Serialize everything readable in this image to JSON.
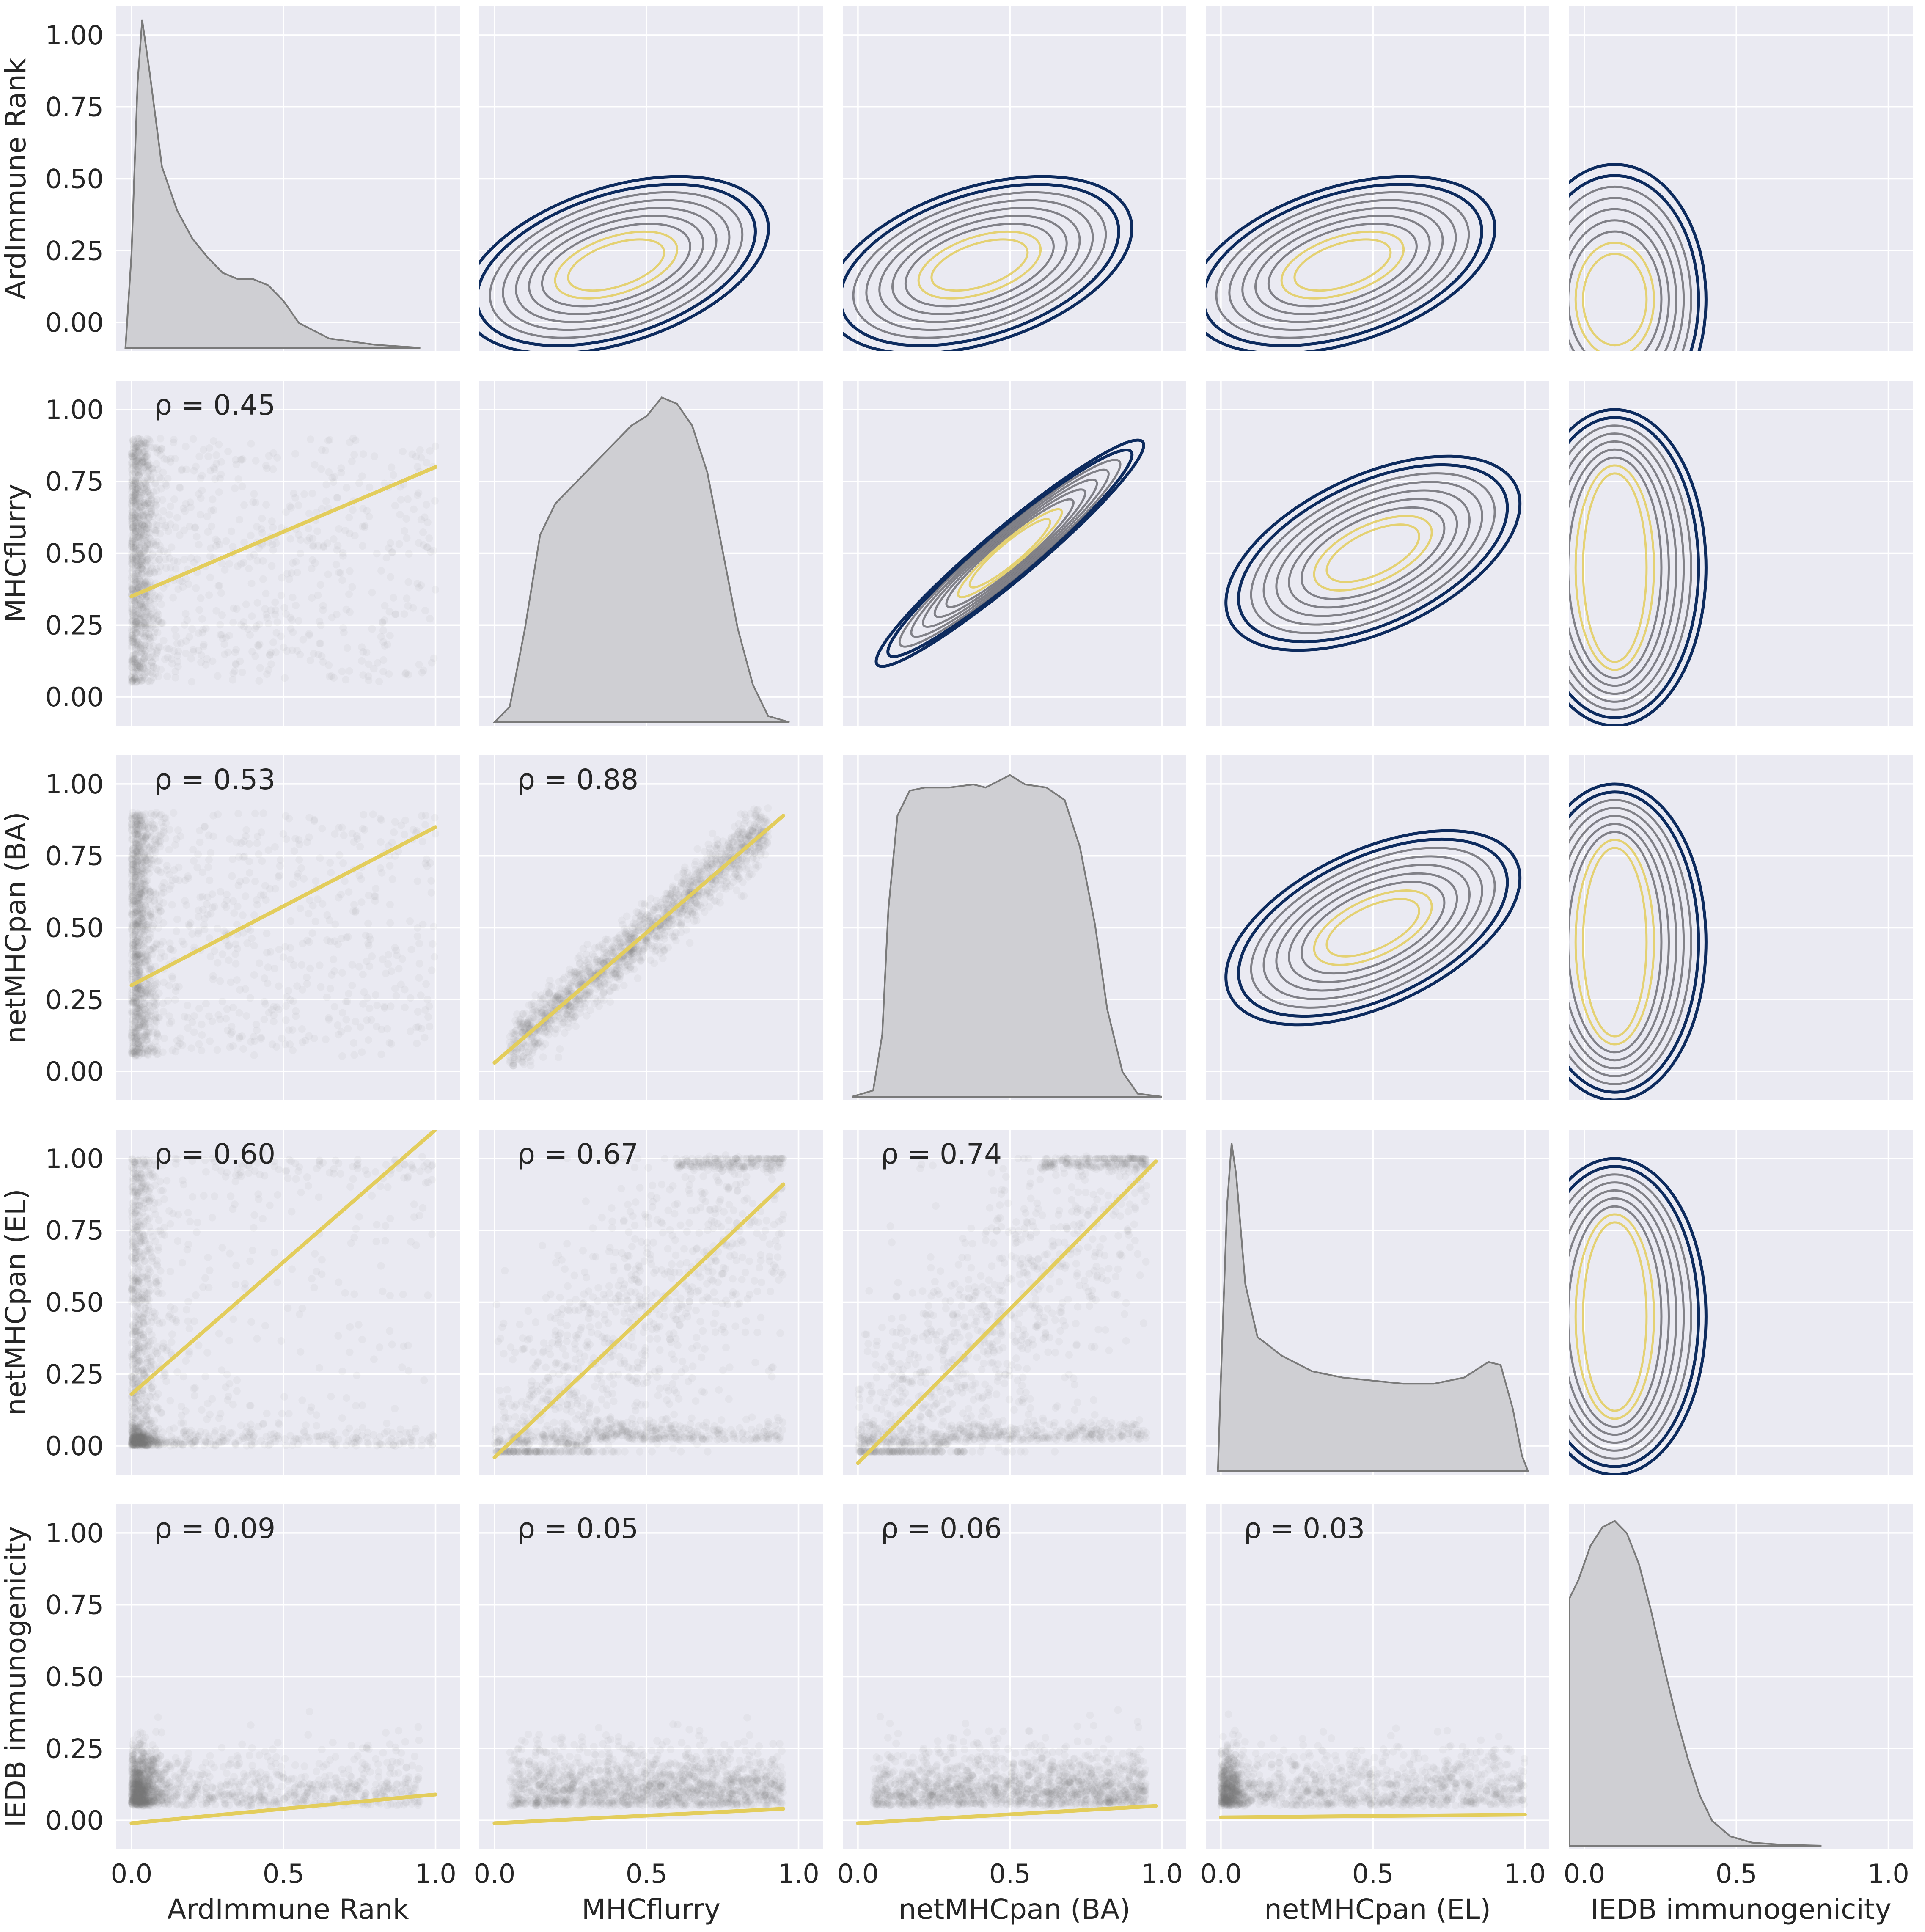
{
  "chart_data": {
    "type": "scatter",
    "layout": "pairplot 5x5; lower triangle scatter with linear fit, diagonal KDE, upper triangle bivariate KDE contours",
    "variables": [
      "ArdImmune Rank",
      "MHCflurry",
      "netMHCpan (BA)",
      "netMHCpan (EL)",
      "IEDB immunogenicity"
    ],
    "x_ticks": [
      "0.0",
      "0.5",
      "1.0"
    ],
    "y_ticks": [
      "0.00",
      "0.25",
      "0.50",
      "0.75",
      "1.00"
    ],
    "xlim": [
      -0.05,
      1.08
    ],
    "ylim": [
      -0.1,
      1.1
    ],
    "grid": true,
    "colors": {
      "panel_background": "#eaeaf2",
      "scatter": "#7a7a7a",
      "fit_line": "#e3cd5c",
      "kde_fill": "#cfcfd3",
      "contour_outer": "#0d2b5e",
      "contour_mid": "#6f6f75",
      "contour_inner": "#e3cd5c"
    },
    "correlations": [
      {
        "x": "ArdImmune Rank",
        "y": "MHCflurry",
        "label": "ρ = 0.45",
        "fit": [
          [
            0.0,
            0.35
          ],
          [
            1.0,
            0.8
          ]
        ]
      },
      {
        "x": "ArdImmune Rank",
        "y": "netMHCpan (BA)",
        "label": "ρ = 0.53",
        "fit": [
          [
            0.0,
            0.3
          ],
          [
            1.0,
            0.85
          ]
        ]
      },
      {
        "x": "MHCflurry",
        "y": "netMHCpan (BA)",
        "label": "ρ = 0.88",
        "fit": [
          [
            0.0,
            0.03
          ],
          [
            0.95,
            0.89
          ]
        ]
      },
      {
        "x": "ArdImmune Rank",
        "y": "netMHCpan (EL)",
        "label": "ρ = 0.60",
        "fit": [
          [
            0.0,
            0.18
          ],
          [
            1.0,
            1.1
          ]
        ]
      },
      {
        "x": "MHCflurry",
        "y": "netMHCpan (EL)",
        "label": "ρ = 0.67",
        "fit": [
          [
            0.0,
            -0.04
          ],
          [
            0.95,
            0.91
          ]
        ]
      },
      {
        "x": "netMHCpan (BA)",
        "y": "netMHCpan (EL)",
        "label": "ρ = 0.74",
        "fit": [
          [
            0.0,
            -0.06
          ],
          [
            0.98,
            0.99
          ]
        ]
      },
      {
        "x": "ArdImmune Rank",
        "y": "IEDB immunogenicity",
        "label": "ρ = 0.09",
        "fit": [
          [
            0.0,
            -0.01
          ],
          [
            1.0,
            0.09
          ]
        ]
      },
      {
        "x": "MHCflurry",
        "y": "IEDB immunogenicity",
        "label": "ρ = 0.05",
        "fit": [
          [
            0.0,
            -0.01
          ],
          [
            0.95,
            0.04
          ]
        ]
      },
      {
        "x": "netMHCpan (BA)",
        "y": "IEDB immunogenicity",
        "label": "ρ = 0.06",
        "fit": [
          [
            0.0,
            -0.01
          ],
          [
            0.98,
            0.05
          ]
        ]
      },
      {
        "x": "netMHCpan (EL)",
        "y": "IEDB immunogenicity",
        "label": "ρ = 0.03",
        "fit": [
          [
            0.0,
            0.01
          ],
          [
            1.0,
            0.02
          ]
        ]
      }
    ],
    "diagonal_kde": [
      {
        "variable": "ArdImmune Rank",
        "points": [
          [
            -0.02,
            0.0
          ],
          [
            0.0,
            0.3
          ],
          [
            0.02,
            0.85
          ],
          [
            0.035,
            1.05
          ],
          [
            0.06,
            0.88
          ],
          [
            0.1,
            0.58
          ],
          [
            0.15,
            0.44
          ],
          [
            0.2,
            0.35
          ],
          [
            0.25,
            0.29
          ],
          [
            0.3,
            0.24
          ],
          [
            0.35,
            0.22
          ],
          [
            0.4,
            0.22
          ],
          [
            0.45,
            0.2
          ],
          [
            0.5,
            0.15
          ],
          [
            0.55,
            0.08
          ],
          [
            0.65,
            0.03
          ],
          [
            0.8,
            0.01
          ],
          [
            0.95,
            0.0
          ]
        ]
      },
      {
        "variable": "MHCflurry",
        "points": [
          [
            0.0,
            0.0
          ],
          [
            0.05,
            0.05
          ],
          [
            0.1,
            0.3
          ],
          [
            0.15,
            0.6
          ],
          [
            0.2,
            0.7
          ],
          [
            0.25,
            0.75
          ],
          [
            0.3,
            0.8
          ],
          [
            0.35,
            0.85
          ],
          [
            0.4,
            0.9
          ],
          [
            0.45,
            0.95
          ],
          [
            0.5,
            0.98
          ],
          [
            0.55,
            1.04
          ],
          [
            0.6,
            1.02
          ],
          [
            0.65,
            0.95
          ],
          [
            0.7,
            0.8
          ],
          [
            0.75,
            0.55
          ],
          [
            0.8,
            0.3
          ],
          [
            0.85,
            0.12
          ],
          [
            0.9,
            0.02
          ],
          [
            0.97,
            0.0
          ]
        ]
      },
      {
        "variable": "netMHCpan (BA)",
        "points": [
          [
            -0.02,
            0.0
          ],
          [
            0.05,
            0.02
          ],
          [
            0.08,
            0.2
          ],
          [
            0.1,
            0.6
          ],
          [
            0.13,
            0.9
          ],
          [
            0.17,
            0.98
          ],
          [
            0.22,
            0.99
          ],
          [
            0.3,
            0.99
          ],
          [
            0.38,
            1.0
          ],
          [
            0.42,
            0.99
          ],
          [
            0.5,
            1.03
          ],
          [
            0.55,
            1.0
          ],
          [
            0.62,
            0.99
          ],
          [
            0.68,
            0.95
          ],
          [
            0.73,
            0.8
          ],
          [
            0.78,
            0.55
          ],
          [
            0.82,
            0.28
          ],
          [
            0.87,
            0.08
          ],
          [
            0.92,
            0.01
          ],
          [
            1.0,
            0.0
          ]
        ]
      },
      {
        "variable": "netMHCpan (EL)",
        "points": [
          [
            -0.01,
            0.0
          ],
          [
            0.0,
            0.3
          ],
          [
            0.02,
            0.85
          ],
          [
            0.035,
            1.05
          ],
          [
            0.05,
            0.95
          ],
          [
            0.08,
            0.6
          ],
          [
            0.12,
            0.43
          ],
          [
            0.2,
            0.37
          ],
          [
            0.3,
            0.32
          ],
          [
            0.4,
            0.3
          ],
          [
            0.5,
            0.29
          ],
          [
            0.6,
            0.28
          ],
          [
            0.7,
            0.28
          ],
          [
            0.8,
            0.3
          ],
          [
            0.88,
            0.35
          ],
          [
            0.92,
            0.34
          ],
          [
            0.96,
            0.2
          ],
          [
            0.99,
            0.05
          ],
          [
            1.01,
            0.0
          ]
        ]
      },
      {
        "variable": "IEDB immunogenicity",
        "points": [
          [
            -0.05,
            0.79
          ],
          [
            -0.02,
            0.85
          ],
          [
            0.02,
            0.96
          ],
          [
            0.06,
            1.02
          ],
          [
            0.1,
            1.04
          ],
          [
            0.14,
            1.0
          ],
          [
            0.18,
            0.9
          ],
          [
            0.22,
            0.75
          ],
          [
            0.26,
            0.58
          ],
          [
            0.3,
            0.42
          ],
          [
            0.34,
            0.28
          ],
          [
            0.38,
            0.16
          ],
          [
            0.42,
            0.08
          ],
          [
            0.48,
            0.03
          ],
          [
            0.55,
            0.01
          ],
          [
            0.65,
            0.003
          ],
          [
            0.78,
            0.0
          ]
        ]
      }
    ]
  }
}
